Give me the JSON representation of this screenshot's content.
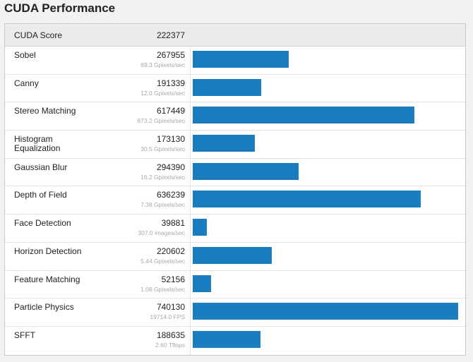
{
  "page": {
    "title": "CUDA Performance"
  },
  "summary": {
    "label": "CUDA Score",
    "value": "222377"
  },
  "colors": {
    "bar": "#1a7dc0",
    "page_background": "#f2f2f2"
  },
  "max_score_for_scale": 740130,
  "benchmarks": [
    {
      "name": "Sobel",
      "score": 267955,
      "score_text": "267955",
      "sub": "69.3 Gpixels/sec"
    },
    {
      "name": "Canny",
      "score": 191339,
      "score_text": "191339",
      "sub": "12.0 Gpixels/sec"
    },
    {
      "name": "Stereo Matching",
      "score": 617449,
      "score_text": "617449",
      "sub": "873.2 Gpixels/sec"
    },
    {
      "name": "Histogram Equalization",
      "score": 173130,
      "score_text": "173130",
      "sub": "30.5 Gpixels/sec"
    },
    {
      "name": "Gaussian Blur",
      "score": 294390,
      "score_text": "294390",
      "sub": "16.2 Gpixels/sec"
    },
    {
      "name": "Depth of Field",
      "score": 636239,
      "score_text": "636239",
      "sub": "7.38 Gpixels/sec"
    },
    {
      "name": "Face Detection",
      "score": 39881,
      "score_text": "39881",
      "sub": "307.0 images/sec"
    },
    {
      "name": "Horizon Detection",
      "score": 220602,
      "score_text": "220602",
      "sub": "5.44 Gpixels/sec"
    },
    {
      "name": "Feature Matching",
      "score": 52156,
      "score_text": "52156",
      "sub": "1.08 Gpixels/sec"
    },
    {
      "name": "Particle Physics",
      "score": 740130,
      "score_text": "740130",
      "sub": "19714.0 FPS"
    },
    {
      "name": "SFFT",
      "score": 188635,
      "score_text": "188635",
      "sub": "2.60 Tflops"
    }
  ]
}
